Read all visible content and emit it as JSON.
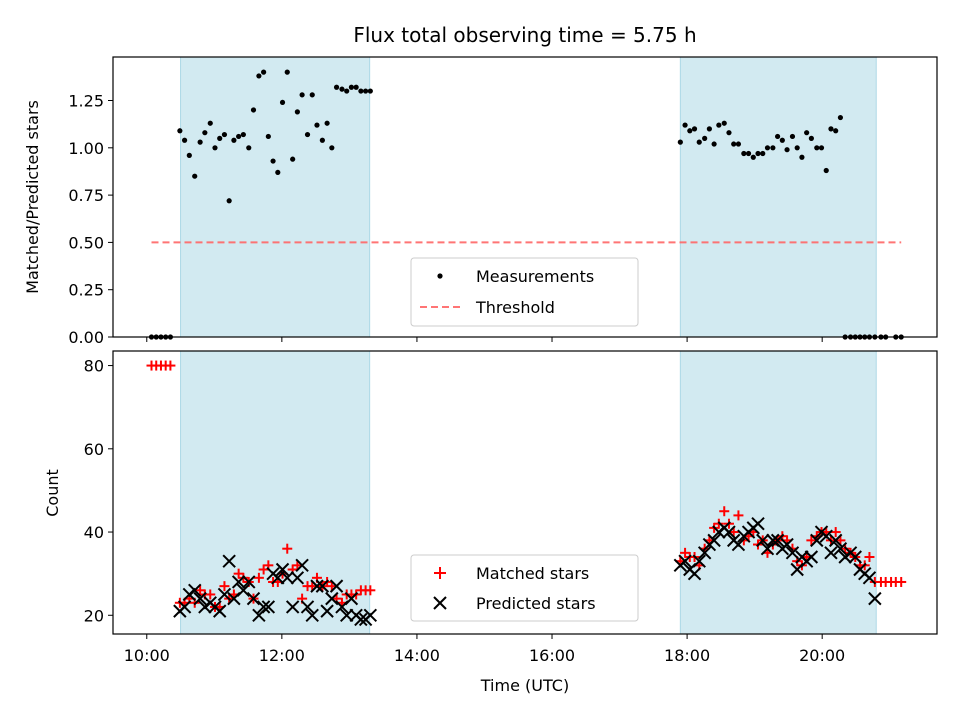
{
  "chart_data": [
    {
      "type": "scatter",
      "title": "Flux total observing time = 5.75 h",
      "xlabel": "",
      "ylabel": "Matched/Predicted stars",
      "xlim_hours": [
        9.5,
        21.7
      ],
      "ylim": [
        0,
        1.48
      ],
      "yticks": [
        "0.00",
        "0.25",
        "0.50",
        "0.75",
        "1.00",
        "1.25"
      ],
      "grid": false,
      "legend_position": "lower-center",
      "observing_windows_hours": [
        [
          10.5,
          13.3
        ],
        [
          17.9,
          20.8
        ]
      ],
      "window_color": "#add8e6",
      "threshold": {
        "name": "Threshold",
        "value": 0.5,
        "x_range_hours": [
          10.07,
          21.17
        ],
        "color": "#ff6666"
      },
      "series": [
        {
          "name": "Measurements",
          "color": "#000000",
          "marker": "dot",
          "x": [
            10.07,
            10.14,
            10.21,
            10.28,
            10.35,
            10.49,
            10.56,
            10.63,
            10.71,
            10.79,
            10.86,
            10.94,
            11.01,
            11.08,
            11.15,
            11.22,
            11.29,
            11.36,
            11.43,
            11.51,
            11.58,
            11.66,
            11.73,
            11.8,
            11.87,
            11.94,
            12.01,
            12.08,
            12.16,
            12.23,
            12.3,
            12.38,
            12.45,
            12.52,
            12.6,
            12.67,
            12.74,
            12.81,
            12.89,
            12.96,
            13.03,
            13.1,
            13.17,
            13.24,
            13.31,
            17.9,
            17.97,
            18.04,
            18.11,
            18.18,
            18.26,
            18.33,
            18.4,
            18.47,
            18.55,
            18.62,
            18.69,
            18.76,
            18.84,
            18.91,
            18.98,
            19.05,
            19.12,
            19.19,
            19.27,
            19.34,
            19.41,
            19.48,
            19.56,
            19.63,
            19.7,
            19.77,
            19.84,
            19.92,
            19.99,
            20.06,
            20.13,
            20.2,
            20.27,
            20.34,
            20.42,
            20.49,
            20.56,
            20.63,
            20.7,
            20.78,
            20.87,
            20.94,
            21.09,
            21.17
          ],
          "y": [
            0,
            0,
            0,
            0,
            0,
            1.09,
            1.04,
            0.96,
            0.85,
            1.03,
            1.08,
            1.13,
            1.0,
            1.05,
            1.07,
            0.72,
            1.04,
            1.06,
            1.07,
            1.0,
            1.2,
            1.38,
            1.4,
            1.06,
            0.93,
            0.87,
            1.24,
            1.4,
            0.94,
            1.19,
            1.28,
            1.07,
            1.28,
            1.12,
            1.04,
            1.13,
            1.0,
            1.32,
            1.31,
            1.3,
            1.32,
            1.32,
            1.3,
            1.3,
            1.3,
            1.03,
            1.12,
            1.09,
            1.1,
            1.03,
            1.05,
            1.1,
            1.02,
            1.12,
            1.13,
            1.08,
            1.02,
            1.02,
            0.97,
            0.97,
            0.95,
            0.97,
            0.97,
            1.0,
            1.0,
            1.06,
            1.04,
            0.99,
            1.06,
            1.0,
            0.95,
            1.08,
            1.05,
            1.0,
            1.0,
            0.88,
            1.1,
            1.09,
            1.16,
            0,
            0,
            0,
            0,
            0,
            0,
            0,
            0,
            0,
            0,
            0
          ]
        }
      ]
    },
    {
      "type": "scatter",
      "title": "",
      "xlabel": "Time (UTC)",
      "ylabel": "Count",
      "xlim_hours": [
        9.5,
        21.7
      ],
      "xtick_hours": [
        10,
        12,
        14,
        16,
        18,
        20
      ],
      "xtick_labels": [
        "10:00",
        "12:00",
        "14:00",
        "16:00",
        "18:00",
        "20:00"
      ],
      "ylim": [
        15.5,
        83.5
      ],
      "yticks": [
        "20",
        "40",
        "60",
        "80"
      ],
      "grid": false,
      "legend_position": "lower-center",
      "observing_windows_hours": [
        [
          10.5,
          13.3
        ],
        [
          17.9,
          20.8
        ]
      ],
      "window_color": "#add8e6",
      "series": [
        {
          "name": "Matched stars",
          "color": "#ff0000",
          "marker": "plus",
          "x": [
            10.07,
            10.14,
            10.21,
            10.28,
            10.35,
            10.49,
            10.56,
            10.63,
            10.71,
            10.79,
            10.86,
            10.94,
            11.01,
            11.08,
            11.15,
            11.22,
            11.29,
            11.36,
            11.43,
            11.51,
            11.58,
            11.66,
            11.73,
            11.8,
            11.87,
            11.94,
            12.01,
            12.08,
            12.16,
            12.23,
            12.3,
            12.38,
            12.45,
            12.52,
            12.6,
            12.67,
            12.74,
            12.81,
            12.89,
            12.96,
            13.03,
            13.1,
            13.17,
            13.24,
            13.31,
            17.9,
            17.97,
            18.04,
            18.11,
            18.18,
            18.26,
            18.33,
            18.4,
            18.47,
            18.55,
            18.62,
            18.69,
            18.76,
            18.84,
            18.91,
            18.98,
            19.05,
            19.12,
            19.19,
            19.27,
            19.34,
            19.41,
            19.48,
            19.56,
            19.63,
            19.7,
            19.77,
            19.84,
            19.92,
            19.99,
            20.06,
            20.13,
            20.2,
            20.27,
            20.34,
            20.42,
            20.49,
            20.56,
            20.63,
            20.7,
            20.78,
            20.87,
            20.94,
            21.02,
            21.09,
            21.17
          ],
          "y": [
            80,
            80,
            80,
            80,
            80,
            23,
            23,
            24,
            23,
            26,
            25,
            25,
            22,
            22,
            27,
            24,
            25,
            30,
            29,
            28,
            24,
            29,
            31,
            32,
            28,
            28,
            30,
            36,
            31,
            32,
            24,
            27,
            27,
            29,
            27,
            28,
            27,
            24,
            23,
            25,
            25,
            25,
            26,
            26,
            26,
            33,
            35,
            34,
            34,
            32,
            36,
            38,
            41,
            42,
            45,
            42,
            40,
            44,
            38,
            39,
            40,
            37,
            38,
            35,
            37,
            38,
            39,
            38,
            36,
            33,
            32,
            34,
            38,
            39,
            40,
            40,
            38,
            40,
            38,
            36,
            35,
            34,
            32,
            32,
            34,
            28,
            28,
            28,
            28,
            28,
            28
          ]
        },
        {
          "name": "Predicted stars",
          "color": "#000000",
          "marker": "x",
          "x": [
            10.49,
            10.56,
            10.63,
            10.71,
            10.79,
            10.86,
            10.94,
            11.01,
            11.08,
            11.15,
            11.22,
            11.29,
            11.36,
            11.43,
            11.51,
            11.58,
            11.66,
            11.73,
            11.8,
            11.87,
            11.94,
            12.01,
            12.08,
            12.16,
            12.23,
            12.3,
            12.38,
            12.45,
            12.52,
            12.6,
            12.67,
            12.74,
            12.81,
            12.89,
            12.96,
            13.03,
            13.1,
            13.17,
            13.24,
            13.31,
            17.9,
            17.97,
            18.04,
            18.11,
            18.18,
            18.26,
            18.33,
            18.4,
            18.47,
            18.55,
            18.62,
            18.69,
            18.76,
            18.84,
            18.91,
            18.98,
            19.05,
            19.12,
            19.19,
            19.27,
            19.34,
            19.41,
            19.48,
            19.56,
            19.63,
            19.7,
            19.77,
            19.84,
            19.92,
            19.99,
            20.06,
            20.13,
            20.2,
            20.27,
            20.34,
            20.42,
            20.49,
            20.56,
            20.63,
            20.7,
            20.78
          ],
          "y": [
            21,
            22,
            25,
            26,
            24,
            22,
            23,
            22,
            21,
            25,
            33,
            24,
            28,
            26,
            28,
            24,
            20,
            22,
            22,
            30,
            29,
            31,
            29,
            22,
            29,
            32,
            22,
            20,
            27,
            27,
            21,
            24,
            27,
            22,
            20,
            24,
            20,
            19,
            19,
            20,
            32,
            33,
            31,
            30,
            33,
            35,
            37,
            38,
            40,
            41,
            40,
            38,
            37,
            39,
            40,
            41,
            42,
            38,
            36,
            38,
            38,
            36,
            37,
            35,
            31,
            34,
            33,
            34,
            38,
            40,
            39,
            35,
            38,
            36,
            34,
            35,
            34,
            31,
            30,
            29,
            24
          ]
        }
      ]
    }
  ]
}
